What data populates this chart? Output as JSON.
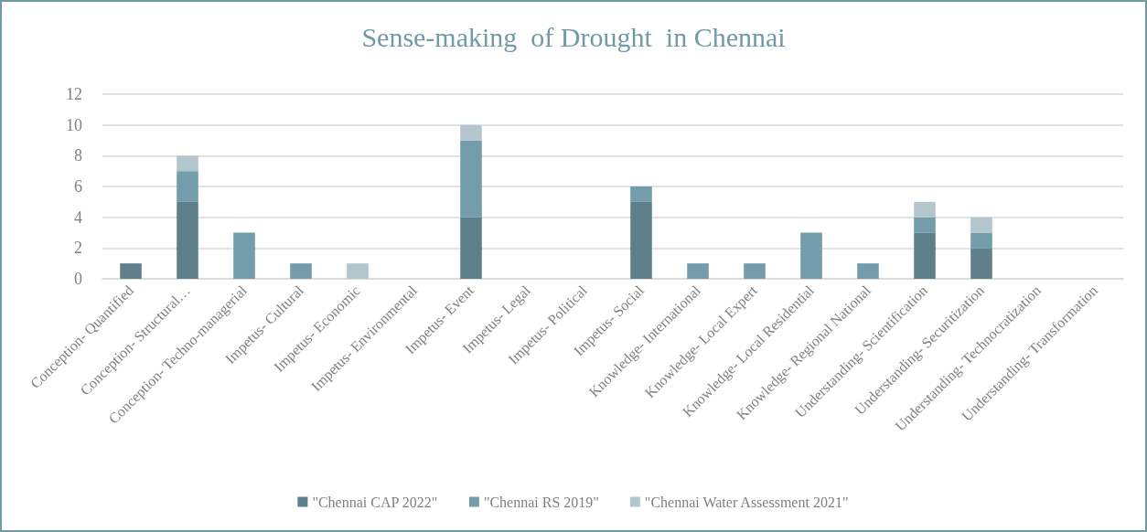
{
  "chart_data": {
    "type": "bar",
    "title": "Sense-making  of Drought  in Chennai",
    "categories": [
      "Conception- Quantified",
      "Conception- Structural…",
      "Conception- Techno-managerial",
      "Impetus- Cultural",
      "Impetus- Economic",
      "Impetus- Environmental",
      "Impetus- Event",
      "Impetus- Legal",
      "Impetus- Political",
      "Impetus- Social",
      "Knowledge- International",
      "Knowledge- Local Expert",
      "Knowledge- Local Residential",
      "Knowledge- Regional National",
      "Understanding- Scientification",
      "Understanding- Securitization",
      "Understanding- Technocratization",
      "Understanding- Transformation"
    ],
    "series": [
      {
        "name": "\"Chennai CAP 2022\"",
        "color": "#5f7f8a",
        "values": [
          1,
          5,
          0,
          0,
          0,
          0,
          4,
          0,
          0,
          5,
          0,
          0,
          0,
          0,
          3,
          2,
          0,
          0
        ]
      },
      {
        "name": "\"Chennai RS 2019\"",
        "color": "#739daa",
        "values": [
          0,
          2,
          3,
          1,
          0,
          0,
          5,
          0,
          0,
          1,
          1,
          1,
          3,
          1,
          1,
          1,
          0,
          0
        ]
      },
      {
        "name": "\"Chennai Water Assessment 2021\"",
        "color": "#b4c6cd",
        "values": [
          0,
          1,
          0,
          0,
          1,
          0,
          1,
          0,
          0,
          0,
          0,
          0,
          0,
          0,
          1,
          1,
          0,
          0
        ]
      }
    ],
    "stacked": true,
    "ylim": [
      0,
      12
    ],
    "yticks": [
      0,
      2,
      4,
      6,
      8,
      10,
      12
    ],
    "grid": "y",
    "legend": "bottom"
  }
}
